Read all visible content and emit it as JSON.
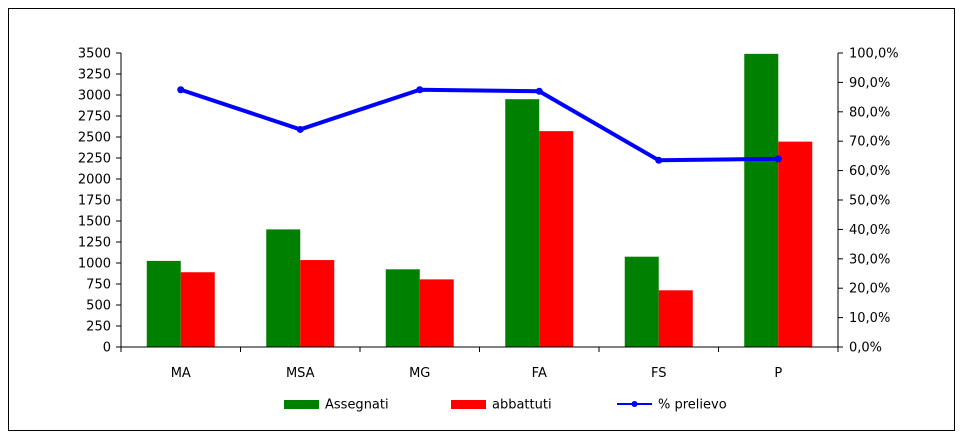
{
  "chart_data": {
    "type": "bar",
    "categories": [
      "MA",
      "MSA",
      "MG",
      "FA",
      "FS",
      "P"
    ],
    "series": [
      {
        "name": "Assegnati",
        "type": "bar",
        "axis": "left",
        "color": "#008000",
        "values": [
          1025,
          1400,
          925,
          2950,
          1075,
          3490
        ]
      },
      {
        "name": "abbattuti",
        "type": "bar",
        "axis": "left",
        "color": "#ff0000",
        "values": [
          890,
          1035,
          805,
          2570,
          675,
          2445
        ]
      },
      {
        "name": "% prelievo",
        "type": "line",
        "axis": "right",
        "color": "#0000ff",
        "values": [
          87.5,
          74.0,
          87.5,
          87.0,
          63.5,
          64.0
        ]
      }
    ],
    "yaxis_left": {
      "min": 0,
      "max": 3500,
      "step": 250
    },
    "yaxis_right": {
      "min": 0,
      "max": 100,
      "step": 10,
      "ticks": [
        "0,0%",
        "10,0%",
        "20,0%",
        "30,0%",
        "40,0%",
        "50,0%",
        "60,0%",
        "70,0%",
        "80,0%",
        "90,0%",
        "100,0%"
      ]
    },
    "legend_position": "bottom",
    "grid": false
  }
}
